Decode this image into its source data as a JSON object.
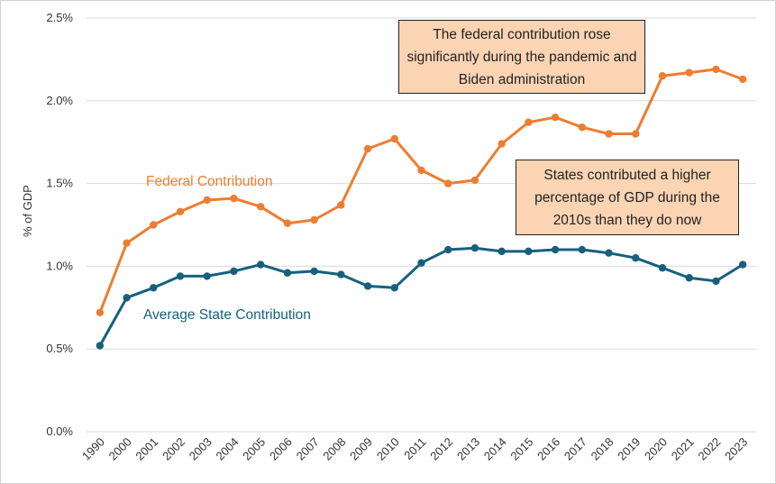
{
  "chart_data": {
    "type": "line",
    "ylabel": "% of GDP",
    "ylim": [
      0,
      2.5
    ],
    "yticks": [
      "0.0%",
      "0.5%",
      "1.0%",
      "1.5%",
      "2.0%",
      "2.5%"
    ],
    "ytick_values": [
      0,
      0.5,
      1.0,
      1.5,
      2.0,
      2.5
    ],
    "grid": true,
    "categories": [
      "1990",
      "2000",
      "2001",
      "2002",
      "2003",
      "2004",
      "2005",
      "2006",
      "2007",
      "2008",
      "2009",
      "2010",
      "2011",
      "2012",
      "2013",
      "2014",
      "2015",
      "2016",
      "2017",
      "2018",
      "2019",
      "2020",
      "2021",
      "2022",
      "2023"
    ],
    "series": [
      {
        "name": "Federal Contribution",
        "color": "#ed7d31",
        "values": [
          0.72,
          1.14,
          1.25,
          1.33,
          1.4,
          1.41,
          1.36,
          1.26,
          1.28,
          1.37,
          1.71,
          1.77,
          1.58,
          1.5,
          1.52,
          1.74,
          1.87,
          1.9,
          1.84,
          1.8,
          1.8,
          2.15,
          2.17,
          2.19,
          2.13
        ]
      },
      {
        "name": "Average State Contribution",
        "color": "#17607d",
        "values": [
          0.52,
          0.81,
          0.87,
          0.94,
          0.94,
          0.97,
          1.01,
          0.96,
          0.97,
          0.95,
          0.88,
          0.87,
          1.02,
          1.1,
          1.11,
          1.09,
          1.09,
          1.1,
          1.1,
          1.08,
          1.05,
          0.99,
          0.93,
          0.91,
          1.01
        ]
      }
    ],
    "annotations": [
      "The federal contribution rose significantly during the pandemic and Biden administration",
      "States contributed a higher percentage of GDP during the 2010s than they do now"
    ]
  }
}
